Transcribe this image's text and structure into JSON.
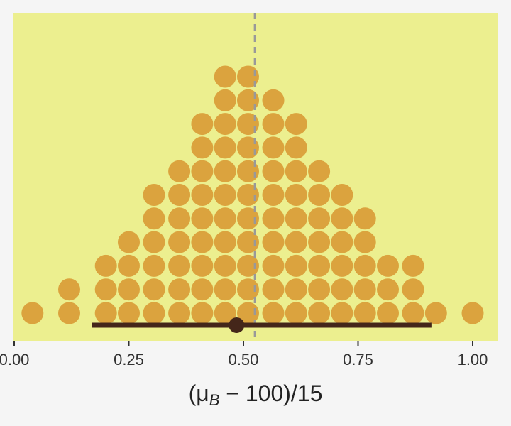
{
  "chart_data": {
    "type": "dotplot",
    "title": "",
    "xlabel": "(μ_B − 100)/15",
    "xlabel_parts": {
      "open": "(μ",
      "sub": "B",
      "rest": " − 100)/15"
    },
    "ylabel": "",
    "xlim": [
      0.0,
      1.03
    ],
    "x_ticks": [
      0.0,
      0.25,
      0.5,
      0.75,
      1.0
    ],
    "x_tick_labels": [
      "0.00",
      "0.25",
      "0.50",
      "0.75",
      "1.00"
    ],
    "grid": false,
    "bin_centers": [
      0.04,
      0.12,
      0.2,
      0.25,
      0.305,
      0.36,
      0.41,
      0.46,
      0.51,
      0.565,
      0.615,
      0.665,
      0.715,
      0.765,
      0.815,
      0.87,
      0.92,
      1.0
    ],
    "counts": [
      1,
      2,
      3,
      4,
      6,
      7,
      9,
      11,
      11,
      10,
      9,
      7,
      6,
      5,
      3,
      3,
      1,
      1
    ],
    "reference_line": {
      "x": 0.525,
      "style": "dashed"
    },
    "interval": {
      "low": 0.17,
      "high": 0.91,
      "point": 0.485
    },
    "colors": {
      "background": "#ecef8f",
      "page": "#f5f5f5",
      "dots": "#dba33e",
      "interval": "#44261a",
      "reference_line": "#999999",
      "axis": "#333333"
    }
  }
}
